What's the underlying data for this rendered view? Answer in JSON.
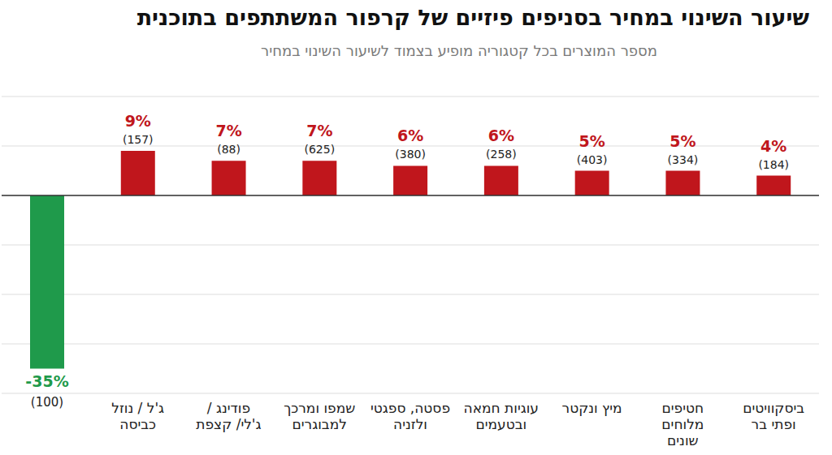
{
  "chart_data": {
    "type": "bar",
    "title": "שיעור השינוי במחיר בסניפים פיזיים של קרפור המשתתפים בתוכנית",
    "subtitle": "מספר המוצרים בכל קטגוריה מופיע בצמוד לשיעור השינוי במחיר",
    "categories": [
      null,
      "ג'ל / נוזל כביסה",
      "פודינג / ג'לי/ קצפת",
      "שמפו ומרכך למבוגרים",
      "פסטה, ספגטי ולזניה",
      "עוגיות חמאה ובטעמים",
      "מיץ ונקטר",
      "חטיפים מלוחים שונים",
      "ביסקוויטים ופתי בר"
    ],
    "values": [
      -35,
      9,
      7,
      7,
      6,
      6,
      5,
      5,
      4
    ],
    "value_labels": [
      "-35%",
      "9%",
      "7%",
      "7%",
      "6%",
      "6%",
      "5%",
      "5%",
      "4%"
    ],
    "product_count_labels": [
      "(100)",
      "(157)",
      "(88)",
      "(625)",
      "(380)",
      "(258)",
      "(403)",
      "(334)",
      "(184)"
    ],
    "colors": [
      "#1f9a4b",
      "#c0161c",
      "#c0161c",
      "#c0161c",
      "#c0161c",
      "#c0161c",
      "#c0161c",
      "#c0161c",
      "#c0161c"
    ],
    "ylim": [
      -40,
      20
    ],
    "yticks": [
      -40,
      -30,
      -20,
      -10,
      0,
      10,
      20
    ],
    "grid": true,
    "data_labels": true,
    "tick_labels": "x"
  }
}
